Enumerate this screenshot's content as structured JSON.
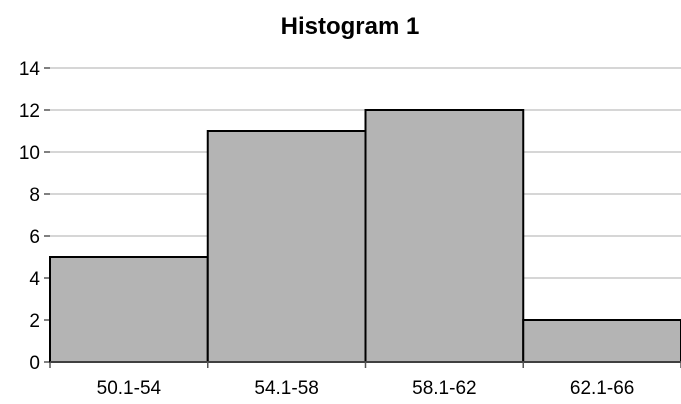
{
  "chart_data": {
    "type": "bar",
    "title": "Histogram 1",
    "xlabel": "",
    "ylabel": "",
    "categories": [
      "50.1-54",
      "54.1-58",
      "58.1-62",
      "62.1-66"
    ],
    "values": [
      5,
      11,
      12,
      2
    ],
    "ylim": [
      0,
      14
    ],
    "y_ticks": [
      0,
      2,
      4,
      6,
      8,
      10,
      12,
      14
    ],
    "grid": true,
    "legend": "none",
    "colors": {
      "bar_fill": "#b4b4b4",
      "bar_stroke": "#000000",
      "grid": "#c8c8c8"
    }
  }
}
